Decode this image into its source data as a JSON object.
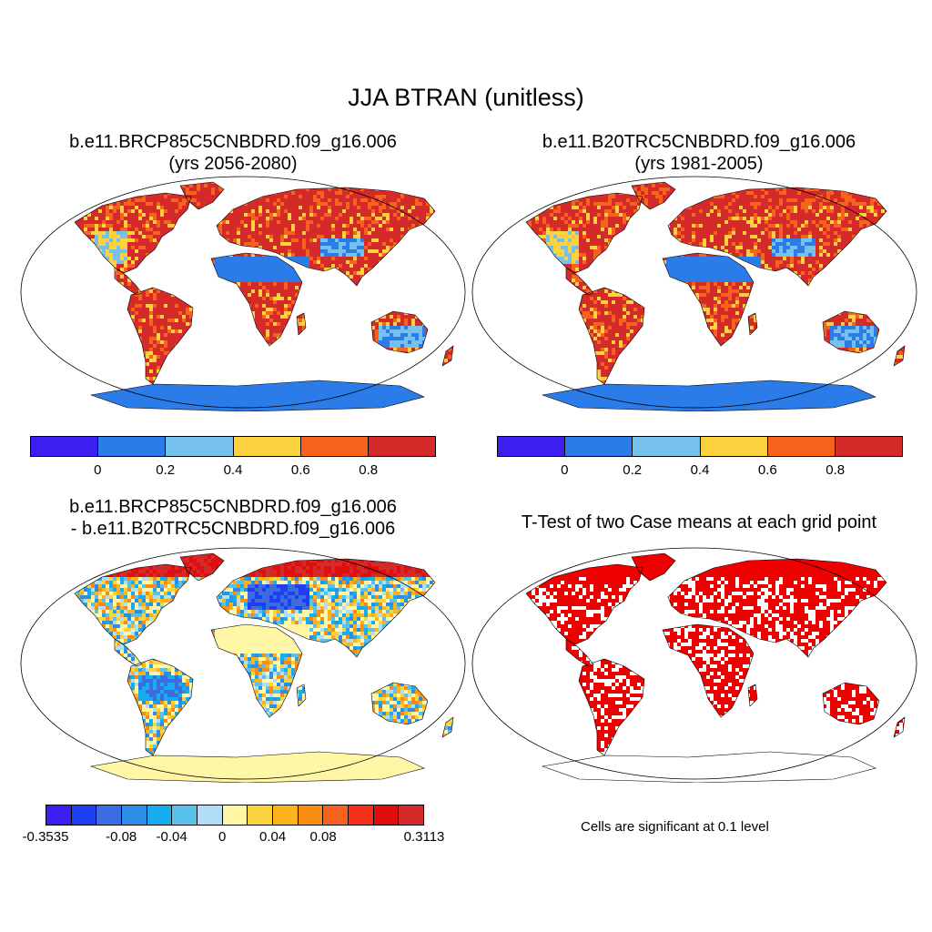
{
  "title": "JJA BTRAN (unitless)",
  "panels": [
    {
      "id": "future",
      "line1": "b.e11.BRCP85C5CNBDRD.f09_g16.006",
      "line2": "(yrs 2056-2080)"
    },
    {
      "id": "historical",
      "line1": "b.e11.B20TRC5CNBDRD.f09_g16.006",
      "line2": "(yrs 1981-2005)"
    },
    {
      "id": "difference",
      "line1": "b.e11.BRCP85C5CNBDRD.f09_g16.006",
      "line2": "- b.e11.B20TRC5CNBDRD.f09_g16.006"
    },
    {
      "id": "ttest",
      "line1": "T-Test of two Case means at each grid point"
    }
  ],
  "colorbar_main": {
    "colors": [
      "#3b1ff0",
      "#2b7be8",
      "#76c1ec",
      "#fcd33f",
      "#f7631c",
      "#d42a2a"
    ],
    "labels": [
      "0",
      "0.2",
      "0.4",
      "0.6",
      "0.8"
    ]
  },
  "colorbar_diff": {
    "colors": [
      "#3b1ff0",
      "#1f3ff0",
      "#3b6ce0",
      "#2b8fe8",
      "#16acef",
      "#5ac0ec",
      "#b1def5",
      "#fff7a6",
      "#fcd33f",
      "#fcb21a",
      "#fb8c12",
      "#f7631c",
      "#f5311c",
      "#e00f0f",
      "#d42a2a"
    ],
    "labels": [
      "-0.3535",
      "-0.08",
      "-0.04",
      "0",
      "0.04",
      "0.08",
      "0.3113"
    ]
  },
  "significance_note": "Cells are significant at 0.1 level",
  "map_colors": {
    "ocean": "#ffffff",
    "coast": "#000000",
    "sig": "#ee0000",
    "antarctica_main": "#2b7be8",
    "antarctica_diff": "#fff7a6"
  }
}
